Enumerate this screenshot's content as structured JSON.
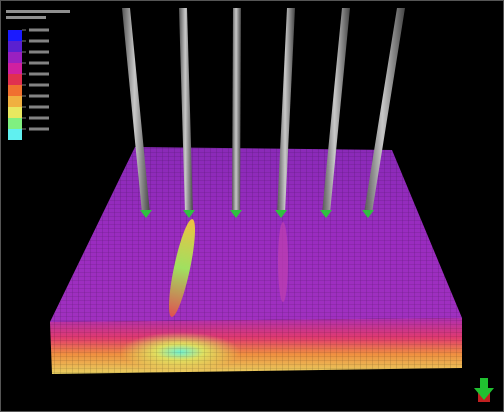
{
  "legend": {
    "colors": [
      "#1a1aff",
      "#5a20d0",
      "#9a20c0",
      "#d020a0",
      "#e03050",
      "#f07030",
      "#f0b040",
      "#e8e860",
      "#80f080",
      "#60f0f0"
    ]
  }
}
